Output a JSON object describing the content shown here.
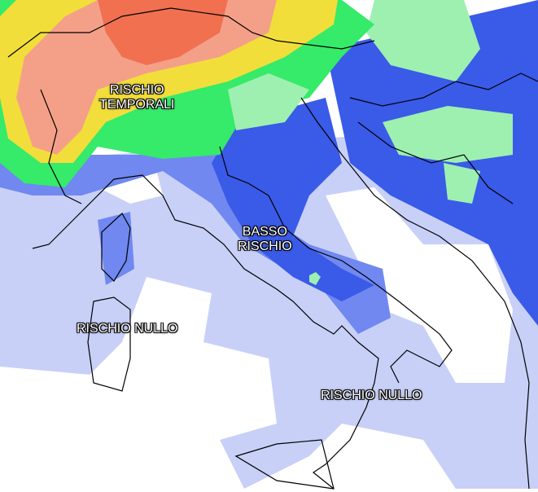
{
  "map": {
    "labels": {
      "high_risk": [
        "RISCHIO",
        "TEMPORALI"
      ],
      "low_risk": [
        "BASSO",
        "RISCHIO"
      ],
      "none_west": "RISCHIO NULLO",
      "none_south": "RISCHIO NULLO"
    },
    "risk_colors": {
      "very_high": "#f07050",
      "high": "#f4a088",
      "moderate": "#f2de3a",
      "elevated": "#36ea6a",
      "mild": "#9ef0b0",
      "low": "#3a5ae8",
      "very_low": "#7088f0",
      "minimal": "#c8d0f8",
      "none": "#ffffff"
    }
  }
}
